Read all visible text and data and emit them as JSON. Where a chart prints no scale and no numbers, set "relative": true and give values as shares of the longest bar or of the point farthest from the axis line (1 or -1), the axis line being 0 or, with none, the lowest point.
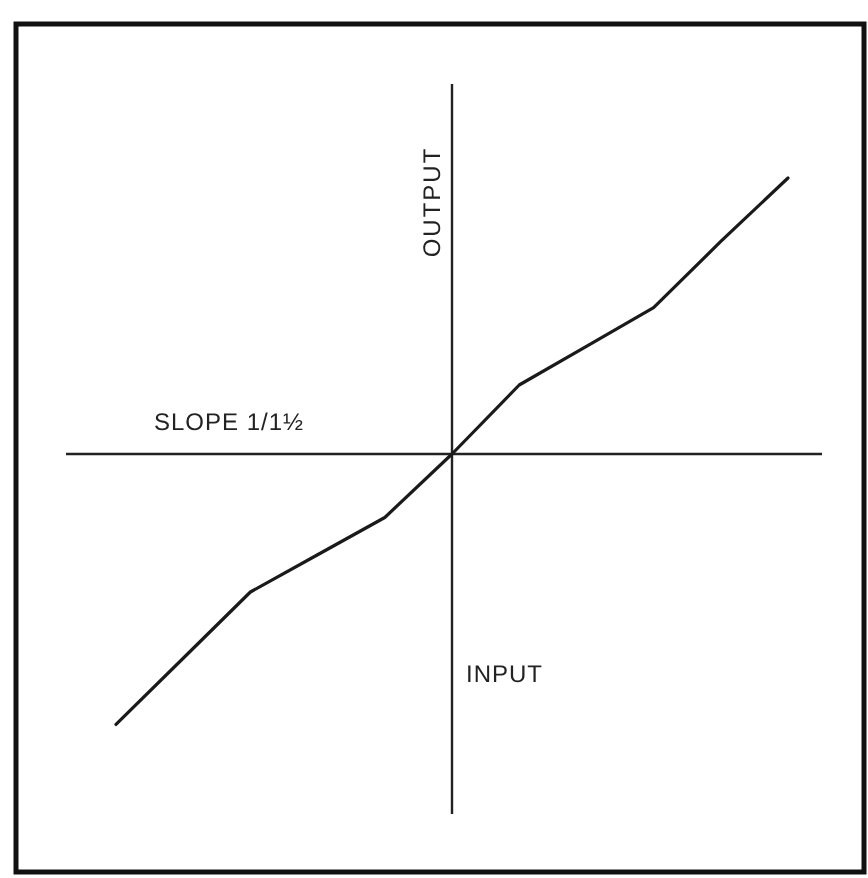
{
  "chart_data": {
    "type": "line",
    "relative": true,
    "xlabel": "INPUT",
    "ylabel": "OUTPUT",
    "annotations": [
      "SLOPE 1/1½"
    ],
    "marker": "none",
    "categories": [
      null,
      null,
      null,
      null,
      null,
      null,
      null,
      null,
      null,
      null,
      null
    ],
    "series": [
      {
        "color": "#1a1a1a",
        "values": [
          -0.98,
          -0.74,
          -0.5,
          -0.365,
          -0.23,
          0,
          0.25,
          0.39,
          0.53,
          0.77,
          1
        ]
      }
    ]
  }
}
